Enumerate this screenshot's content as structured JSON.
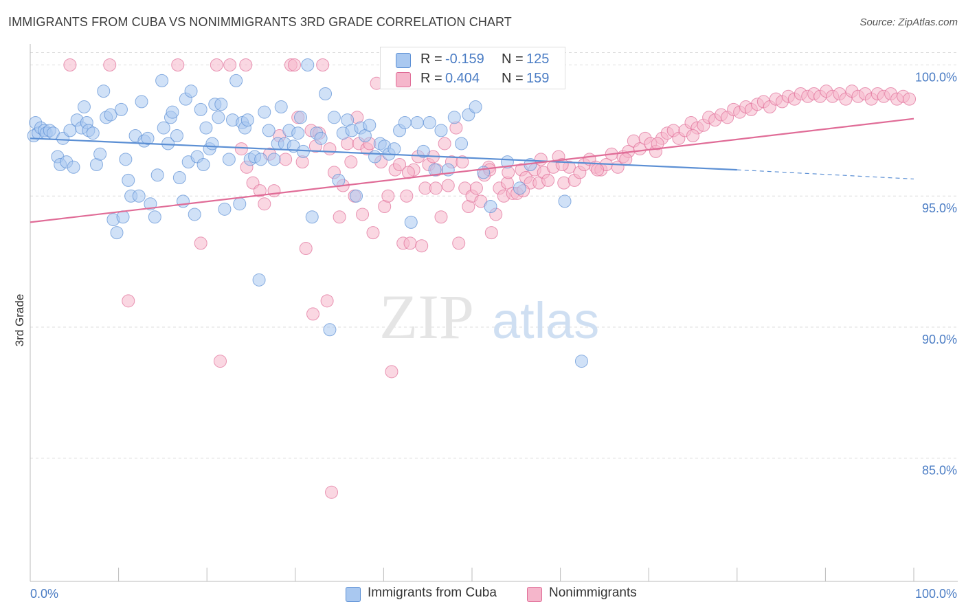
{
  "title": "IMMIGRANTS FROM CUBA VS NONIMMIGRANTS 3RD GRADE CORRELATION CHART",
  "source": "Source: ZipAtlas.com",
  "watermark": {
    "zip": "ZIP",
    "atlas": "atlas"
  },
  "legend": {
    "series1": {
      "r_label": "R =",
      "r_value": "-0.159",
      "n_label": "N =",
      "n_value": "125"
    },
    "series2": {
      "r_label": "R =",
      "r_value": "0.404",
      "n_label": "N =",
      "n_value": "159"
    }
  },
  "colors": {
    "blue": "#5b8fd4",
    "blue_fill": "#a9c8f0",
    "pink": "#e06c97",
    "pink_fill": "#f5b6cb",
    "axis_label": "#4a7cc4"
  },
  "chart_data": {
    "type": "scatter",
    "ylabel": "3rd Grade",
    "xlim": [
      0,
      100
    ],
    "ylim": [
      80.3,
      100.8
    ],
    "x_tick_labels": [
      "0.0%",
      "100.0%"
    ],
    "y_ticks": [
      85,
      90,
      95,
      100
    ],
    "y_tick_labels": [
      "85.0%",
      "90.0%",
      "95.0%",
      "100.0%"
    ],
    "grid": true,
    "legend_position": "top-center",
    "series": [
      {
        "name": "Immigrants from Cuba",
        "color": "#5b8fd4",
        "trend": {
          "x0": 0,
          "y0": 97.2,
          "x1": 80,
          "y1": 96.0,
          "dashed_to": 100,
          "dashed_y": 95.65
        },
        "points": [
          [
            0.4,
            97.3
          ],
          [
            0.6,
            97.8
          ],
          [
            0.9,
            97.4
          ],
          [
            1.2,
            97.6
          ],
          [
            1.6,
            97.5
          ],
          [
            1.8,
            97.4
          ],
          [
            2.2,
            97.5
          ],
          [
            2.6,
            97.4
          ],
          [
            3.1,
            96.5
          ],
          [
            3.4,
            96.2
          ],
          [
            3.7,
            97.2
          ],
          [
            4.1,
            96.3
          ],
          [
            4.5,
            97.5
          ],
          [
            4.9,
            96.1
          ],
          [
            5.3,
            97.9
          ],
          [
            5.8,
            97.6
          ],
          [
            6.1,
            98.4
          ],
          [
            6.4,
            97.8
          ],
          [
            6.6,
            97.5
          ],
          [
            7.1,
            97.4
          ],
          [
            7.5,
            96.2
          ],
          [
            7.9,
            96.6
          ],
          [
            8.3,
            99.0
          ],
          [
            8.6,
            98.0
          ],
          [
            9.1,
            98.1
          ],
          [
            9.4,
            94.1
          ],
          [
            9.8,
            93.6
          ],
          [
            10.3,
            98.3
          ],
          [
            10.5,
            94.2
          ],
          [
            10.8,
            96.4
          ],
          [
            11.1,
            95.6
          ],
          [
            11.4,
            95.0
          ],
          [
            11.9,
            97.3
          ],
          [
            12.3,
            95.0
          ],
          [
            12.6,
            98.6
          ],
          [
            12.9,
            97.1
          ],
          [
            13.3,
            97.2
          ],
          [
            13.6,
            94.7
          ],
          [
            14.1,
            94.2
          ],
          [
            14.4,
            95.8
          ],
          [
            14.9,
            99.4
          ],
          [
            15.1,
            97.6
          ],
          [
            15.6,
            97.0
          ],
          [
            15.9,
            98.0
          ],
          [
            16.1,
            98.2
          ],
          [
            16.6,
            97.3
          ],
          [
            16.9,
            95.7
          ],
          [
            17.3,
            94.8
          ],
          [
            17.6,
            98.7
          ],
          [
            17.9,
            96.3
          ],
          [
            18.2,
            99.0
          ],
          [
            18.6,
            94.3
          ],
          [
            18.9,
            96.5
          ],
          [
            19.3,
            98.3
          ],
          [
            19.6,
            96.2
          ],
          [
            19.9,
            97.6
          ],
          [
            20.3,
            96.8
          ],
          [
            20.6,
            97.0
          ],
          [
            20.9,
            98.5
          ],
          [
            21.3,
            98.0
          ],
          [
            21.6,
            98.5
          ],
          [
            22.0,
            94.5
          ],
          [
            22.5,
            96.4
          ],
          [
            22.9,
            97.9
          ],
          [
            23.3,
            99.4
          ],
          [
            23.7,
            94.7
          ],
          [
            24.0,
            97.8
          ],
          [
            24.3,
            97.6
          ],
          [
            24.6,
            97.9
          ],
          [
            24.9,
            96.4
          ],
          [
            25.4,
            96.5
          ],
          [
            25.9,
            91.8
          ],
          [
            26.1,
            96.4
          ],
          [
            26.5,
            98.2
          ],
          [
            27.0,
            97.5
          ],
          [
            27.6,
            96.4
          ],
          [
            28.0,
            97.0
          ],
          [
            28.4,
            98.4
          ],
          [
            28.8,
            97.0
          ],
          [
            29.3,
            97.5
          ],
          [
            29.8,
            96.9
          ],
          [
            30.3,
            97.4
          ],
          [
            30.6,
            98.0
          ],
          [
            30.9,
            96.7
          ],
          [
            31.4,
            100.0
          ],
          [
            31.9,
            94.2
          ],
          [
            32.4,
            97.4
          ],
          [
            32.9,
            97.2
          ],
          [
            33.4,
            98.9
          ],
          [
            33.9,
            89.9
          ],
          [
            34.4,
            98.0
          ],
          [
            34.9,
            95.6
          ],
          [
            35.4,
            97.4
          ],
          [
            35.9,
            97.9
          ],
          [
            36.4,
            97.5
          ],
          [
            36.9,
            95.0
          ],
          [
            37.4,
            97.6
          ],
          [
            37.9,
            97.3
          ],
          [
            38.4,
            97.7
          ],
          [
            39.0,
            96.5
          ],
          [
            39.6,
            97.0
          ],
          [
            40.1,
            96.9
          ],
          [
            40.6,
            96.6
          ],
          [
            41.2,
            96.8
          ],
          [
            41.8,
            97.5
          ],
          [
            42.4,
            97.8
          ],
          [
            43.1,
            94.0
          ],
          [
            43.8,
            97.8
          ],
          [
            44.5,
            96.7
          ],
          [
            45.2,
            97.8
          ],
          [
            45.8,
            96.0
          ],
          [
            46.5,
            97.5
          ],
          [
            47.3,
            96.0
          ],
          [
            48.0,
            98.0
          ],
          [
            48.8,
            97.0
          ],
          [
            49.6,
            98.1
          ],
          [
            50.4,
            98.4
          ],
          [
            51.3,
            95.9
          ],
          [
            52.1,
            94.6
          ],
          [
            54.0,
            96.3
          ],
          [
            55.4,
            95.3
          ],
          [
            56.6,
            96.2
          ],
          [
            60.5,
            94.8
          ],
          [
            62.4,
            88.7
          ]
        ]
      },
      {
        "name": "Nonimmigrants",
        "color": "#e06c97",
        "trend": {
          "x0": 0,
          "y0": 94.0,
          "x1": 100,
          "y1": 97.95
        },
        "points": [
          [
            4.5,
            100.0
          ],
          [
            9.0,
            100.0
          ],
          [
            11.1,
            91.0
          ],
          [
            16.7,
            100.0
          ],
          [
            19.3,
            93.2
          ],
          [
            21.1,
            100.0
          ],
          [
            21.5,
            88.7
          ],
          [
            22.6,
            100.0
          ],
          [
            24.4,
            100.0
          ],
          [
            23.9,
            96.8
          ],
          [
            24.5,
            96.1
          ],
          [
            25.2,
            95.5
          ],
          [
            26.0,
            95.2
          ],
          [
            26.5,
            94.7
          ],
          [
            27.1,
            96.6
          ],
          [
            27.6,
            95.2
          ],
          [
            28.2,
            97.3
          ],
          [
            28.9,
            96.4
          ],
          [
            29.5,
            100.0
          ],
          [
            29.9,
            100.0
          ],
          [
            30.3,
            98.0
          ],
          [
            30.8,
            96.3
          ],
          [
            31.2,
            93.0
          ],
          [
            31.8,
            97.5
          ],
          [
            32.0,
            90.5
          ],
          [
            32.3,
            96.9
          ],
          [
            32.7,
            97.4
          ],
          [
            33.1,
            100.0
          ],
          [
            33.6,
            91.0
          ],
          [
            34.1,
            83.7
          ],
          [
            34.4,
            95.9
          ],
          [
            35.0,
            94.2
          ],
          [
            35.4,
            95.4
          ],
          [
            35.9,
            97.0
          ],
          [
            36.3,
            96.3
          ],
          [
            36.7,
            95.0
          ],
          [
            37.2,
            97.0
          ],
          [
            37.6,
            94.3
          ],
          [
            38.1,
            96.8
          ],
          [
            38.4,
            97.0
          ],
          [
            38.8,
            93.6
          ],
          [
            39.2,
            99.3
          ],
          [
            39.7,
            96.3
          ],
          [
            40.1,
            94.6
          ],
          [
            40.5,
            95.0
          ],
          [
            40.9,
            88.3
          ],
          [
            41.3,
            96.0
          ],
          [
            41.8,
            96.2
          ],
          [
            42.2,
            93.2
          ],
          [
            42.6,
            95.0
          ],
          [
            43.0,
            93.2
          ],
          [
            43.4,
            96.0
          ],
          [
            43.9,
            96.5
          ],
          [
            44.3,
            93.1
          ],
          [
            44.7,
            95.3
          ],
          [
            45.1,
            96.2
          ],
          [
            45.6,
            96.5
          ],
          [
            46.0,
            96.0
          ],
          [
            46.5,
            94.2
          ],
          [
            46.9,
            97.0
          ],
          [
            47.3,
            95.4
          ],
          [
            47.7,
            96.3
          ],
          [
            48.2,
            97.6
          ],
          [
            48.5,
            93.2
          ],
          [
            48.9,
            96.3
          ],
          [
            49.2,
            95.3
          ],
          [
            49.6,
            94.6
          ],
          [
            50.0,
            95.0
          ],
          [
            50.5,
            95.3
          ],
          [
            51.0,
            94.8
          ],
          [
            51.4,
            95.8
          ],
          [
            51.9,
            96.1
          ],
          [
            52.2,
            93.6
          ],
          [
            52.7,
            94.3
          ],
          [
            53.1,
            95.3
          ],
          [
            53.6,
            95.0
          ],
          [
            54.0,
            95.5
          ],
          [
            54.6,
            95.1
          ],
          [
            55.1,
            95.1
          ],
          [
            55.6,
            96.0
          ],
          [
            56.1,
            95.7
          ],
          [
            56.6,
            95.5
          ],
          [
            57.1,
            96.0
          ],
          [
            57.6,
            95.5
          ],
          [
            58.1,
            95.9
          ],
          [
            58.6,
            95.6
          ],
          [
            59.2,
            96.1
          ],
          [
            59.8,
            96.5
          ],
          [
            60.4,
            95.5
          ],
          [
            61.0,
            96.1
          ],
          [
            61.6,
            95.6
          ],
          [
            62.2,
            95.9
          ],
          [
            62.7,
            96.2
          ],
          [
            63.3,
            96.4
          ],
          [
            64.0,
            96.1
          ],
          [
            64.6,
            96.0
          ],
          [
            65.2,
            96.2
          ],
          [
            65.8,
            96.6
          ],
          [
            66.5,
            96.1
          ],
          [
            67.1,
            96.5
          ],
          [
            67.7,
            96.7
          ],
          [
            68.3,
            97.1
          ],
          [
            69.0,
            96.8
          ],
          [
            69.6,
            97.2
          ],
          [
            70.2,
            97.0
          ],
          [
            70.8,
            96.7
          ],
          [
            71.5,
            97.2
          ],
          [
            72.1,
            97.4
          ],
          [
            72.8,
            97.5
          ],
          [
            73.4,
            97.2
          ],
          [
            74.1,
            97.5
          ],
          [
            74.8,
            97.8
          ],
          [
            75.5,
            97.6
          ],
          [
            76.2,
            97.7
          ],
          [
            76.8,
            98.0
          ],
          [
            77.5,
            97.9
          ],
          [
            78.2,
            98.1
          ],
          [
            78.9,
            98.0
          ],
          [
            79.6,
            98.3
          ],
          [
            80.3,
            98.2
          ],
          [
            81.0,
            98.4
          ],
          [
            81.6,
            98.3
          ],
          [
            82.3,
            98.5
          ],
          [
            83.0,
            98.6
          ],
          [
            83.7,
            98.4
          ],
          [
            84.4,
            98.7
          ],
          [
            85.1,
            98.6
          ],
          [
            85.8,
            98.8
          ],
          [
            86.5,
            98.7
          ],
          [
            87.2,
            98.9
          ],
          [
            88.0,
            98.8
          ],
          [
            88.7,
            98.9
          ],
          [
            89.4,
            98.8
          ],
          [
            90.1,
            99.0
          ],
          [
            90.8,
            98.8
          ],
          [
            91.6,
            98.9
          ],
          [
            92.3,
            98.7
          ],
          [
            93.0,
            99.0
          ],
          [
            93.7,
            98.8
          ],
          [
            94.5,
            98.9
          ],
          [
            95.2,
            98.7
          ],
          [
            95.9,
            98.9
          ],
          [
            96.6,
            98.8
          ],
          [
            97.4,
            98.9
          ],
          [
            98.1,
            98.7
          ],
          [
            98.8,
            98.8
          ],
          [
            99.5,
            98.7
          ],
          [
            64.2,
            96.0
          ],
          [
            67.4,
            96.4
          ],
          [
            71.0,
            97.0
          ],
          [
            75.0,
            97.3
          ],
          [
            60.2,
            96.2
          ],
          [
            57.8,
            96.4
          ],
          [
            55.8,
            95.2
          ],
          [
            54.1,
            95.9
          ],
          [
            52.0,
            96.0
          ],
          [
            45.9,
            95.3
          ],
          [
            42.8,
            95.9
          ],
          [
            37.0,
            98.0
          ],
          [
            33.9,
            96.8
          ]
        ]
      }
    ]
  },
  "bottom_legend": [
    "Immigrants from Cuba",
    "Nonimmigrants"
  ]
}
